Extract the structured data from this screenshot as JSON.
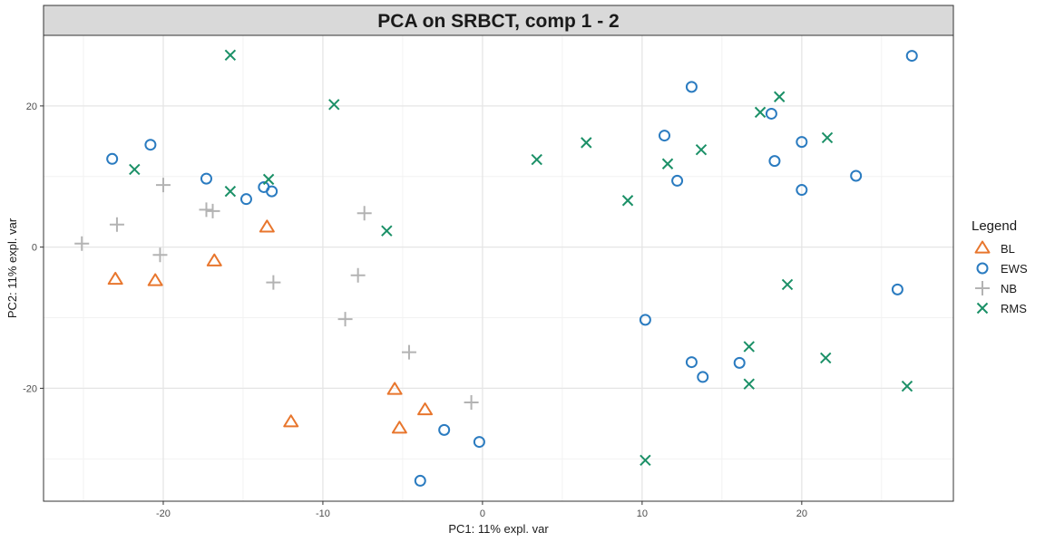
{
  "chart_data": {
    "type": "scatter",
    "title": "PCA on SRBCT, comp 1 - 2",
    "xlabel": "PC1: 11% expl. var",
    "ylabel": "PC2: 11% expl. var",
    "xlim": [
      -27.5,
      29.5
    ],
    "ylim": [
      -36,
      30
    ],
    "xticks": [
      -20,
      -10,
      0,
      10,
      20
    ],
    "yticks": [
      -20,
      0,
      20
    ],
    "x_tick_labels": [
      "-20",
      "-10",
      "0",
      "10",
      "20"
    ],
    "y_tick_labels": [
      "-20",
      "0",
      "20"
    ],
    "grid": true,
    "legend": {
      "title": "Legend",
      "position": "right"
    },
    "series": [
      {
        "name": "BL",
        "color": "#e8762d",
        "marker": "triangle",
        "points": [
          [
            -13.5,
            2.8
          ],
          [
            -16.8,
            -2.0
          ],
          [
            -23.0,
            -4.6
          ],
          [
            -20.5,
            -4.8
          ],
          [
            -12.0,
            -24.8
          ],
          [
            -5.5,
            -20.2
          ],
          [
            -5.2,
            -25.7
          ],
          [
            -3.6,
            -23.1
          ]
        ]
      },
      {
        "name": "EWS",
        "color": "#2a7bc0",
        "marker": "circle",
        "points": [
          [
            -23.2,
            12.5
          ],
          [
            -20.8,
            14.5
          ],
          [
            -17.3,
            9.7
          ],
          [
            -14.8,
            6.8
          ],
          [
            -13.7,
            8.5
          ],
          [
            -13.2,
            7.9
          ],
          [
            -2.4,
            -25.9
          ],
          [
            -0.2,
            -27.6
          ],
          [
            -3.9,
            -33.1
          ],
          [
            10.2,
            -10.3
          ],
          [
            13.1,
            -16.3
          ],
          [
            13.8,
            -18.4
          ],
          [
            16.1,
            -16.4
          ],
          [
            13.1,
            22.7
          ],
          [
            11.4,
            15.8
          ],
          [
            12.2,
            9.4
          ],
          [
            18.1,
            18.9
          ],
          [
            18.3,
            12.2
          ],
          [
            20.0,
            14.9
          ],
          [
            20.0,
            8.1
          ],
          [
            23.4,
            10.1
          ],
          [
            26.0,
            -6.0
          ],
          [
            26.9,
            27.1
          ]
        ]
      },
      {
        "name": "NB",
        "color": "#b3b3b3",
        "marker": "plus",
        "points": [
          [
            -25.1,
            0.5
          ],
          [
            -22.9,
            3.2
          ],
          [
            -20.0,
            8.8
          ],
          [
            -20.2,
            -1.1
          ],
          [
            -17.3,
            5.3
          ],
          [
            -16.9,
            5.1
          ],
          [
            -13.1,
            -5.0
          ],
          [
            -7.4,
            4.8
          ],
          [
            -7.8,
            -4.0
          ],
          [
            -8.6,
            -10.2
          ],
          [
            -4.6,
            -14.9
          ],
          [
            -0.7,
            -22.0
          ]
        ]
      },
      {
        "name": "RMS",
        "color": "#1b9067",
        "marker": "x",
        "points": [
          [
            -15.8,
            27.2
          ],
          [
            -9.3,
            20.2
          ],
          [
            -21.8,
            11.0
          ],
          [
            -15.8,
            7.9
          ],
          [
            -13.4,
            9.6
          ],
          [
            -6.0,
            2.3
          ],
          [
            3.4,
            12.4
          ],
          [
            6.5,
            14.8
          ],
          [
            9.1,
            6.6
          ],
          [
            11.6,
            11.8
          ],
          [
            13.7,
            13.8
          ],
          [
            17.4,
            19.1
          ],
          [
            18.6,
            21.3
          ],
          [
            21.6,
            15.5
          ],
          [
            19.1,
            -5.3
          ],
          [
            16.7,
            -14.1
          ],
          [
            16.7,
            -19.4
          ],
          [
            21.5,
            -15.7
          ],
          [
            26.6,
            -19.7
          ],
          [
            10.2,
            -30.2
          ]
        ]
      }
    ]
  }
}
